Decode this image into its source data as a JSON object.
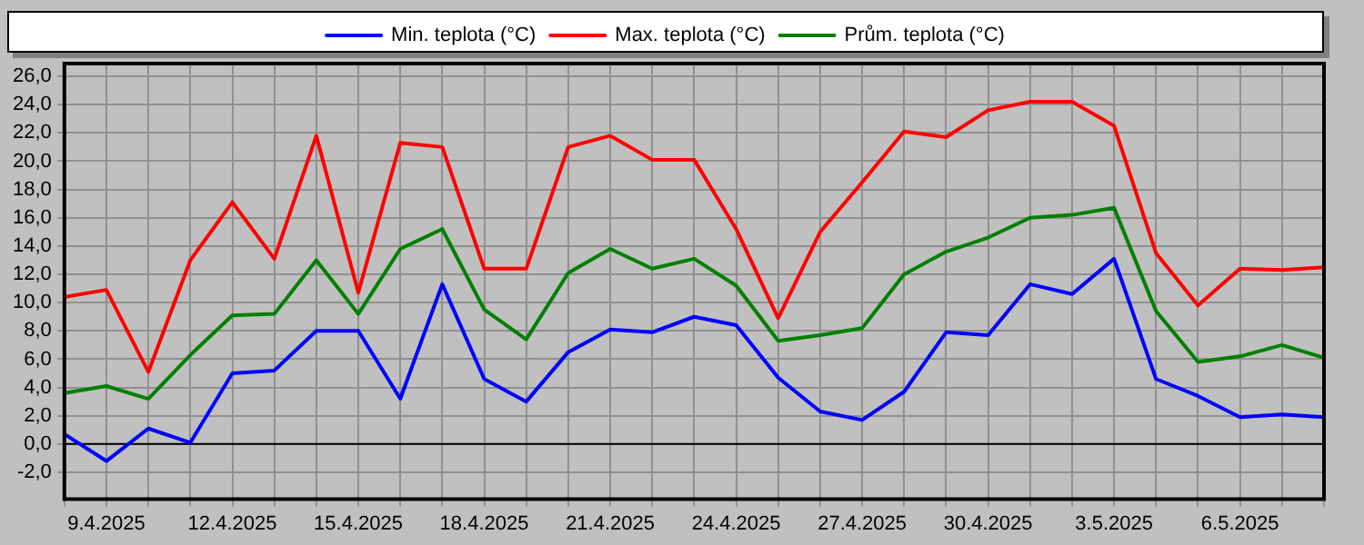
{
  "chart_data": {
    "type": "line",
    "x": [
      "2025-04-08",
      "2025-04-09",
      "2025-04-10",
      "2025-04-11",
      "2025-04-12",
      "2025-04-13",
      "2025-04-14",
      "2025-04-15",
      "2025-04-16",
      "2025-04-17",
      "2025-04-18",
      "2025-04-19",
      "2025-04-20",
      "2025-04-21",
      "2025-04-22",
      "2025-04-23",
      "2025-04-24",
      "2025-04-25",
      "2025-04-26",
      "2025-04-27",
      "2025-04-28",
      "2025-04-29",
      "2025-04-30",
      "2025-05-01",
      "2025-05-02",
      "2025-05-03",
      "2025-05-04",
      "2025-05-05",
      "2025-05-06",
      "2025-05-07",
      "2025-05-08"
    ],
    "series": [
      {
        "name": "Min. teplota (°C)",
        "color": "#0000ff",
        "values": [
          0.7,
          -1.2,
          1.1,
          0.1,
          5.0,
          5.2,
          8.0,
          8.0,
          3.2,
          11.3,
          4.6,
          3.0,
          6.5,
          8.1,
          7.9,
          9.0,
          8.4,
          4.7,
          2.3,
          1.7,
          3.7,
          7.9,
          7.7,
          11.3,
          10.6,
          13.1,
          4.6,
          3.4,
          1.9,
          2.1,
          1.9
        ]
      },
      {
        "name": "Max. teplota (°C)",
        "color": "#ff0000",
        "values": [
          10.4,
          10.9,
          5.1,
          13.0,
          17.1,
          13.1,
          21.8,
          10.7,
          21.3,
          21.0,
          12.4,
          12.4,
          21.0,
          21.8,
          20.1,
          20.1,
          15.2,
          8.9,
          15.0,
          18.5,
          22.1,
          21.7,
          23.6,
          24.2,
          24.2,
          22.5,
          13.5,
          9.8,
          12.4,
          12.3,
          12.5
        ]
      },
      {
        "name": "Prům. teplota (°C)",
        "color": "#008000",
        "values": [
          3.6,
          4.1,
          3.2,
          6.3,
          9.1,
          9.2,
          13.0,
          9.2,
          13.8,
          15.2,
          9.5,
          7.4,
          12.1,
          13.8,
          12.4,
          13.1,
          11.2,
          7.3,
          7.7,
          8.2,
          12.0,
          13.6,
          14.6,
          16.0,
          16.2,
          16.7,
          9.4,
          5.8,
          6.2,
          7.0,
          6.1
        ]
      }
    ],
    "xlim": [
      "2025-04-08",
      "2025-05-08"
    ],
    "xticks": [
      {
        "value": "2025-04-08",
        "label": null
      },
      {
        "value": "2025-04-09",
        "label": "9.4.2025"
      },
      {
        "value": "2025-04-10",
        "label": null
      },
      {
        "value": "2025-04-11",
        "label": null
      },
      {
        "value": "2025-04-12",
        "label": "12.4.2025"
      },
      {
        "value": "2025-04-13",
        "label": null
      },
      {
        "value": "2025-04-14",
        "label": null
      },
      {
        "value": "2025-04-15",
        "label": "15.4.2025"
      },
      {
        "value": "2025-04-16",
        "label": null
      },
      {
        "value": "2025-04-17",
        "label": null
      },
      {
        "value": "2025-04-18",
        "label": "18.4.2025"
      },
      {
        "value": "2025-04-19",
        "label": null
      },
      {
        "value": "2025-04-20",
        "label": null
      },
      {
        "value": "2025-04-21",
        "label": "21.4.2025"
      },
      {
        "value": "2025-04-22",
        "label": null
      },
      {
        "value": "2025-04-23",
        "label": null
      },
      {
        "value": "2025-04-24",
        "label": "24.4.2025"
      },
      {
        "value": "2025-04-25",
        "label": null
      },
      {
        "value": "2025-04-26",
        "label": null
      },
      {
        "value": "2025-04-27",
        "label": "27.4.2025"
      },
      {
        "value": "2025-04-28",
        "label": null
      },
      {
        "value": "2025-04-29",
        "label": null
      },
      {
        "value": "2025-04-30",
        "label": "30.4.2025"
      },
      {
        "value": "2025-05-01",
        "label": null
      },
      {
        "value": "2025-05-02",
        "label": null
      },
      {
        "value": "2025-05-03",
        "label": "3.5.2025"
      },
      {
        "value": "2025-05-04",
        "label": null
      },
      {
        "value": "2025-05-05",
        "label": null
      },
      {
        "value": "2025-05-06",
        "label": "6.5.2025"
      },
      {
        "value": "2025-05-07",
        "label": null
      },
      {
        "value": "2025-05-08",
        "label": null
      }
    ],
    "ylim": [
      -3.9,
      26.9
    ],
    "yticks": [
      {
        "value": -2,
        "label": "-2,0"
      },
      {
        "value": 0,
        "label": "0,0"
      },
      {
        "value": 2,
        "label": "2,0"
      },
      {
        "value": 4,
        "label": "4,0"
      },
      {
        "value": 6,
        "label": "6,0"
      },
      {
        "value": 8,
        "label": "8,0"
      },
      {
        "value": 10,
        "label": "10,0"
      },
      {
        "value": 12,
        "label": "12,0"
      },
      {
        "value": 14,
        "label": "14,0"
      },
      {
        "value": 16,
        "label": "16,0"
      },
      {
        "value": 18,
        "label": "18,0"
      },
      {
        "value": 20,
        "label": "20,0"
      },
      {
        "value": 22,
        "label": "22,0"
      },
      {
        "value": 24,
        "label": "24,0"
      },
      {
        "value": 26,
        "label": "26,0"
      }
    ],
    "ref_lines": [
      {
        "axis": "y",
        "value": 0,
        "color": "#000000",
        "line_style": "solid"
      }
    ],
    "grid": true,
    "legend": "top",
    "marker": "none",
    "line_style": "solid"
  }
}
